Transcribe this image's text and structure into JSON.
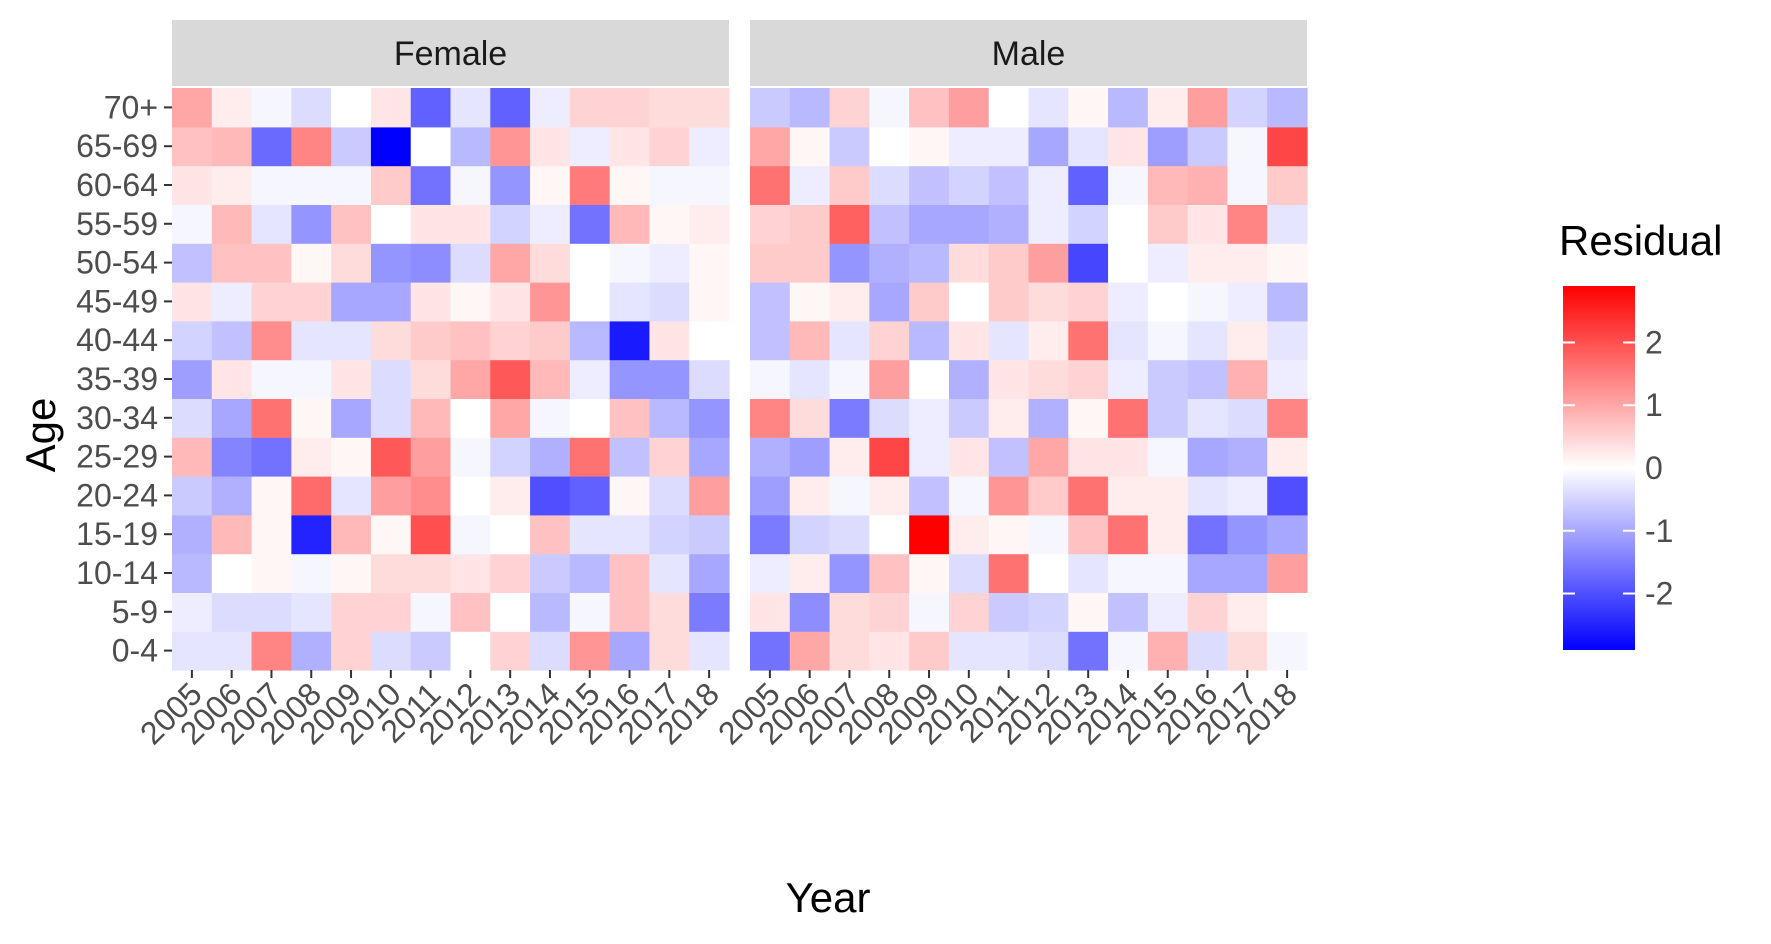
{
  "chart_data": {
    "type": "heatmap",
    "title": "",
    "xlabel": "Year",
    "ylabel": "Age",
    "x": [
      "2005",
      "2006",
      "2007",
      "2008",
      "2009",
      "2010",
      "2011",
      "2012",
      "2013",
      "2014",
      "2015",
      "2016",
      "2017",
      "2018"
    ],
    "y": [
      "0-4",
      "5-9",
      "10-14",
      "15-19",
      "20-24",
      "25-29",
      "30-34",
      "35-39",
      "40-44",
      "45-49",
      "50-54",
      "55-59",
      "60-64",
      "65-69",
      "70+"
    ],
    "facets": [
      "Female",
      "Male"
    ],
    "legend": {
      "title": "Residual",
      "position": "right",
      "ticks": [
        -2,
        -1,
        0,
        1,
        2
      ],
      "range": [
        -2.9,
        2.9
      ],
      "colors": {
        "low": "#0000ff",
        "mid": "#ffffff",
        "high": "#ff0000"
      }
    },
    "series": [
      {
        "name": "Female",
        "values": [
          [
            -0.3,
            -0.3,
            1.4,
            -0.9,
            0.5,
            -0.4,
            -0.6,
            0.0,
            0.5,
            -0.4,
            1.2,
            -1.0,
            0.4,
            -0.3
          ],
          [
            -0.2,
            -0.4,
            -0.4,
            -0.3,
            0.5,
            0.5,
            -0.1,
            0.7,
            0.0,
            -0.8,
            -0.1,
            0.7,
            0.4,
            -1.5
          ],
          [
            -0.8,
            0.0,
            0.1,
            -0.1,
            0.1,
            0.4,
            0.4,
            0.3,
            0.5,
            -0.6,
            -0.8,
            0.7,
            -0.3,
            -1.0
          ],
          [
            -0.9,
            0.8,
            0.1,
            -2.5,
            0.8,
            0.1,
            2.0,
            -0.1,
            0.0,
            0.7,
            -0.3,
            -0.3,
            -0.5,
            -0.6
          ],
          [
            -0.6,
            -0.9,
            0.1,
            1.7,
            -0.3,
            1.1,
            1.3,
            0.0,
            0.2,
            -2.0,
            -1.8,
            0.1,
            -0.4,
            1.1
          ],
          [
            0.8,
            -1.4,
            -1.6,
            0.2,
            0.1,
            1.9,
            1.1,
            -0.1,
            -0.5,
            -0.9,
            1.6,
            -0.7,
            0.5,
            -1.0
          ],
          [
            -0.4,
            -1.0,
            1.6,
            0.1,
            -1.0,
            -0.4,
            0.8,
            0.0,
            1.0,
            -0.1,
            0.0,
            0.7,
            -0.8,
            -1.2
          ],
          [
            -1.1,
            0.3,
            -0.1,
            -0.1,
            0.3,
            -0.4,
            0.4,
            1.0,
            1.9,
            0.8,
            -0.2,
            -1.2,
            -1.2,
            -0.4
          ],
          [
            -0.5,
            -0.7,
            1.3,
            -0.3,
            -0.3,
            0.4,
            0.6,
            0.7,
            0.5,
            0.6,
            -0.8,
            -2.6,
            0.3,
            0.0
          ],
          [
            0.3,
            -0.2,
            0.5,
            0.5,
            -1.0,
            -1.0,
            0.3,
            0.1,
            0.3,
            1.2,
            0.0,
            -0.3,
            -0.4,
            0.1
          ],
          [
            -0.7,
            0.7,
            0.7,
            0.1,
            0.4,
            -1.2,
            -1.3,
            -0.4,
            1.0,
            0.4,
            0.0,
            -0.1,
            -0.2,
            0.1
          ],
          [
            -0.1,
            0.8,
            -0.3,
            -1.2,
            0.7,
            0.0,
            0.3,
            0.3,
            -0.5,
            -0.2,
            -1.6,
            0.8,
            0.1,
            0.2
          ],
          [
            0.3,
            0.2,
            -0.1,
            -0.1,
            -0.1,
            0.6,
            -1.6,
            -0.1,
            -1.2,
            0.1,
            1.5,
            0.1,
            -0.1,
            -0.1
          ],
          [
            0.7,
            0.8,
            -1.7,
            1.4,
            -0.6,
            -2.9,
            0.0,
            -0.8,
            1.2,
            0.3,
            -0.2,
            0.3,
            0.5,
            -0.2
          ],
          [
            1.0,
            0.2,
            -0.1,
            -0.4,
            0.0,
            0.3,
            -1.8,
            -0.3,
            -1.8,
            -0.2,
            0.5,
            0.5,
            0.4,
            0.4
          ]
        ]
      },
      {
        "name": "Male",
        "values": [
          [
            -1.6,
            1.0,
            0.4,
            0.3,
            0.6,
            -0.3,
            -0.3,
            -0.4,
            -1.6,
            -0.1,
            0.9,
            -0.4,
            0.4,
            -0.1
          ],
          [
            0.3,
            -1.3,
            0.4,
            0.5,
            -0.1,
            0.5,
            -0.6,
            -0.5,
            0.1,
            -0.7,
            -0.2,
            0.5,
            0.2,
            0.0
          ],
          [
            -0.2,
            0.2,
            -1.2,
            0.7,
            0.1,
            -0.4,
            1.6,
            0.0,
            -0.3,
            -0.1,
            -0.1,
            -1.0,
            -1.0,
            1.1
          ],
          [
            -1.5,
            -0.5,
            -0.4,
            0.0,
            2.9,
            0.2,
            0.1,
            -0.1,
            0.7,
            1.6,
            0.2,
            -1.6,
            -1.2,
            -1.0
          ],
          [
            -1.1,
            0.2,
            -0.1,
            0.2,
            -0.7,
            -0.1,
            1.2,
            0.6,
            1.6,
            0.2,
            0.2,
            -0.3,
            -0.2,
            -2.0
          ],
          [
            -0.9,
            -1.1,
            0.2,
            2.1,
            -0.2,
            0.3,
            -0.7,
            1.0,
            0.3,
            0.3,
            -0.1,
            -1.0,
            -0.9,
            0.2
          ],
          [
            1.4,
            0.4,
            -1.5,
            -0.4,
            -0.2,
            -0.6,
            0.2,
            -0.9,
            0.1,
            1.6,
            -0.6,
            -0.3,
            -0.4,
            1.4
          ],
          [
            -0.1,
            -0.3,
            -0.1,
            1.1,
            0.0,
            -0.9,
            0.3,
            0.4,
            0.5,
            -0.2,
            -0.6,
            -0.7,
            0.9,
            -0.2
          ],
          [
            -0.7,
            0.8,
            -0.3,
            0.5,
            -0.8,
            0.3,
            -0.3,
            0.2,
            1.6,
            -0.3,
            -0.1,
            -0.3,
            0.2,
            -0.3
          ],
          [
            -0.7,
            0.1,
            0.2,
            -1.0,
            0.6,
            0.0,
            0.6,
            0.4,
            0.5,
            -0.2,
            0.0,
            -0.1,
            -0.2,
            -0.8
          ],
          [
            0.6,
            0.6,
            -1.2,
            -0.9,
            -0.8,
            0.4,
            0.6,
            1.1,
            -2.1,
            0.0,
            -0.2,
            0.2,
            0.2,
            0.1
          ],
          [
            0.5,
            0.6,
            1.8,
            -0.7,
            -1.0,
            -1.0,
            -0.9,
            -0.2,
            -0.5,
            0.0,
            0.6,
            0.3,
            1.4,
            -0.3
          ],
          [
            1.6,
            -0.2,
            0.6,
            -0.4,
            -0.7,
            -0.5,
            -0.7,
            -0.2,
            -1.8,
            -0.1,
            0.8,
            0.9,
            -0.1,
            0.6
          ],
          [
            1.0,
            0.1,
            -0.6,
            0.0,
            0.1,
            -0.2,
            -0.2,
            -1.0,
            -0.3,
            0.3,
            -1.1,
            -0.6,
            -0.1,
            2.1
          ],
          [
            -0.6,
            -0.8,
            0.5,
            -0.1,
            0.7,
            1.1,
            0.0,
            -0.3,
            0.1,
            -0.8,
            0.2,
            1.1,
            -0.5,
            -0.8
          ]
        ]
      }
    ]
  }
}
